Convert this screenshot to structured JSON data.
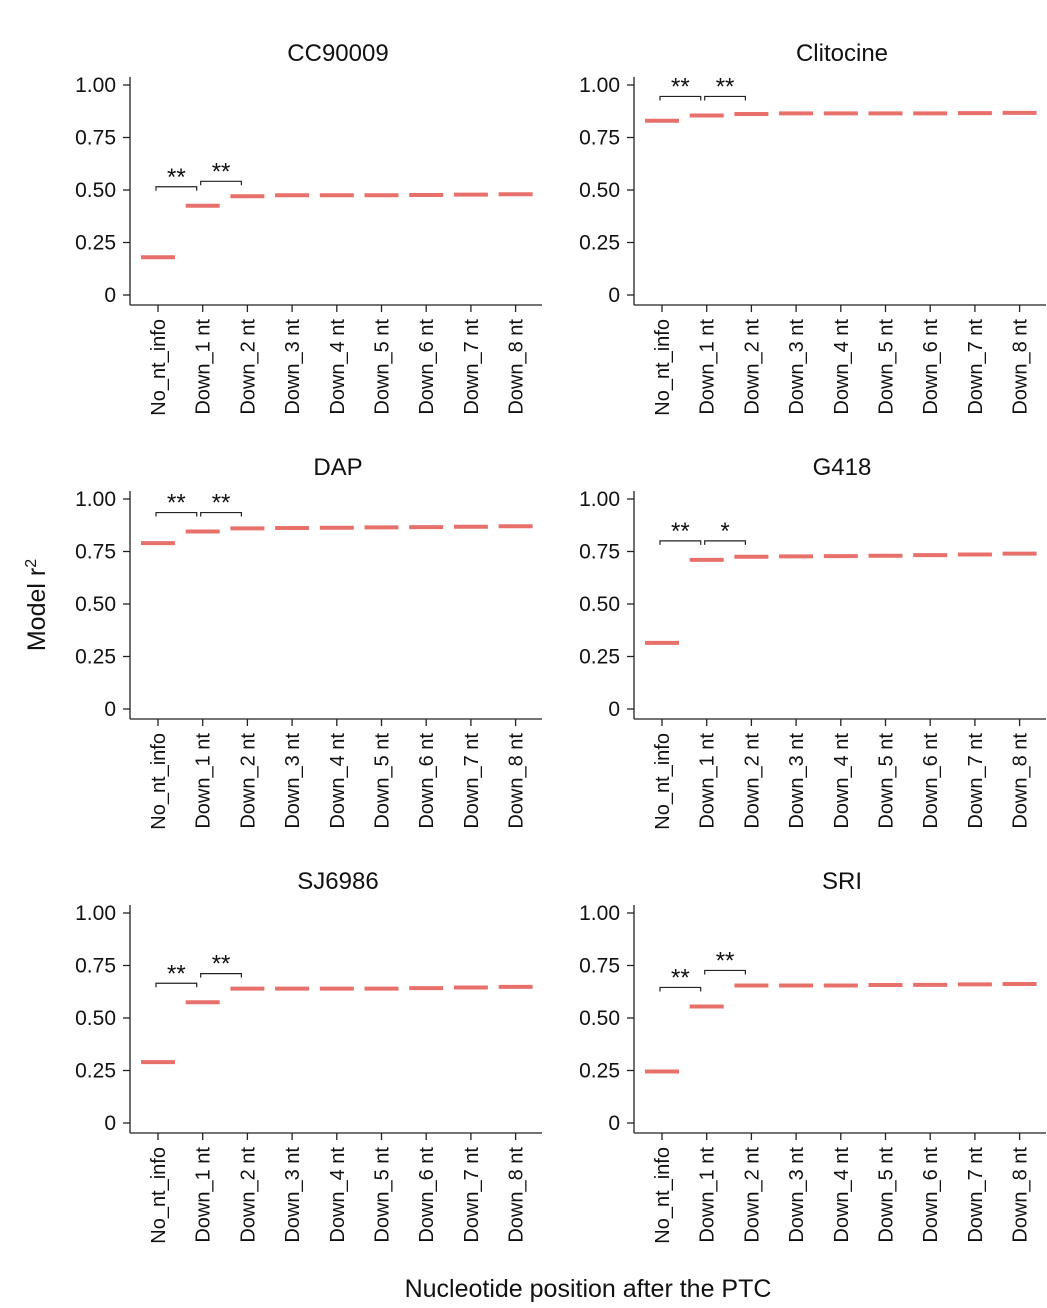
{
  "figure": {
    "ylabel": "Model r",
    "ylabel_sup": "2",
    "xlabel": "Nucleotide position after the PTC",
    "bar_color": "#e8706b"
  },
  "chart_data": [
    {
      "type": "line",
      "title": "CC90009",
      "categories": [
        "No_nt_info",
        "Down_1 nt",
        "Down_2 nt",
        "Down_3 nt",
        "Down_4 nt",
        "Down_5 nt",
        "Down_6 nt",
        "Down_7 nt",
        "Down_8 nt"
      ],
      "values": [
        0.18,
        0.425,
        0.47,
        0.475,
        0.475,
        0.475,
        0.476,
        0.478,
        0.48
      ],
      "yticks": [
        "0",
        "0.25",
        "0.50",
        "0.75",
        "1.00"
      ],
      "ylim": [
        0,
        1
      ],
      "significance": [
        {
          "from": 0,
          "to": 1,
          "label": "**"
        },
        {
          "from": 1,
          "to": 2,
          "label": "**"
        }
      ]
    },
    {
      "type": "line",
      "title": "Clitocine",
      "categories": [
        "No_nt_info",
        "Down_1 nt",
        "Down_2 nt",
        "Down_3 nt",
        "Down_4 nt",
        "Down_5 nt",
        "Down_6 nt",
        "Down_7 nt",
        "Down_8 nt"
      ],
      "values": [
        0.83,
        0.855,
        0.862,
        0.865,
        0.865,
        0.865,
        0.865,
        0.866,
        0.867
      ],
      "yticks": [
        "0",
        "0.25",
        "0.50",
        "0.75",
        "1.00"
      ],
      "ylim": [
        0,
        1
      ],
      "significance": [
        {
          "from": 0,
          "to": 1,
          "label": "**"
        },
        {
          "from": 1,
          "to": 2,
          "label": "**"
        }
      ]
    },
    {
      "type": "line",
      "title": "DAP",
      "categories": [
        "No_nt_info",
        "Down_1 nt",
        "Down_2 nt",
        "Down_3 nt",
        "Down_4 nt",
        "Down_5 nt",
        "Down_6 nt",
        "Down_7 nt",
        "Down_8 nt"
      ],
      "values": [
        0.79,
        0.845,
        0.86,
        0.862,
        0.863,
        0.865,
        0.866,
        0.868,
        0.87
      ],
      "yticks": [
        "0",
        "0.25",
        "0.50",
        "0.75",
        "1.00"
      ],
      "ylim": [
        0,
        1
      ],
      "significance": [
        {
          "from": 0,
          "to": 1,
          "label": "**"
        },
        {
          "from": 1,
          "to": 2,
          "label": "**"
        }
      ]
    },
    {
      "type": "line",
      "title": "G418",
      "categories": [
        "No_nt_info",
        "Down_1 nt",
        "Down_2 nt",
        "Down_3 nt",
        "Down_4 nt",
        "Down_5 nt",
        "Down_6 nt",
        "Down_7 nt",
        "Down_8 nt"
      ],
      "values": [
        0.315,
        0.71,
        0.725,
        0.727,
        0.728,
        0.73,
        0.733,
        0.736,
        0.74
      ],
      "yticks": [
        "0",
        "0.25",
        "0.50",
        "0.75",
        "1.00"
      ],
      "ylim": [
        0,
        1
      ],
      "significance": [
        {
          "from": 0,
          "to": 1,
          "label": "**"
        },
        {
          "from": 1,
          "to": 2,
          "label": "*"
        }
      ]
    },
    {
      "type": "line",
      "title": "SJ6986",
      "categories": [
        "No_nt_info",
        "Down_1 nt",
        "Down_2 nt",
        "Down_3 nt",
        "Down_4 nt",
        "Down_5 nt",
        "Down_6 nt",
        "Down_7 nt",
        "Down_8 nt"
      ],
      "values": [
        0.29,
        0.575,
        0.64,
        0.64,
        0.64,
        0.64,
        0.642,
        0.645,
        0.648
      ],
      "yticks": [
        "0",
        "0.25",
        "0.50",
        "0.75",
        "1.00"
      ],
      "ylim": [
        0,
        1
      ],
      "significance": [
        {
          "from": 0,
          "to": 1,
          "label": "**"
        },
        {
          "from": 1,
          "to": 2,
          "label": "**"
        }
      ]
    },
    {
      "type": "line",
      "title": "SRI",
      "categories": [
        "No_nt_info",
        "Down_1 nt",
        "Down_2 nt",
        "Down_3 nt",
        "Down_4 nt",
        "Down_5 nt",
        "Down_6 nt",
        "Down_7 nt",
        "Down_8 nt"
      ],
      "values": [
        0.245,
        0.555,
        0.655,
        0.655,
        0.655,
        0.657,
        0.658,
        0.66,
        0.662
      ],
      "yticks": [
        "0",
        "0.25",
        "0.50",
        "0.75",
        "1.00"
      ],
      "ylim": [
        0,
        1
      ],
      "significance": [
        {
          "from": 0,
          "to": 1,
          "label": "**"
        },
        {
          "from": 1,
          "to": 2,
          "label": "**"
        }
      ]
    }
  ]
}
